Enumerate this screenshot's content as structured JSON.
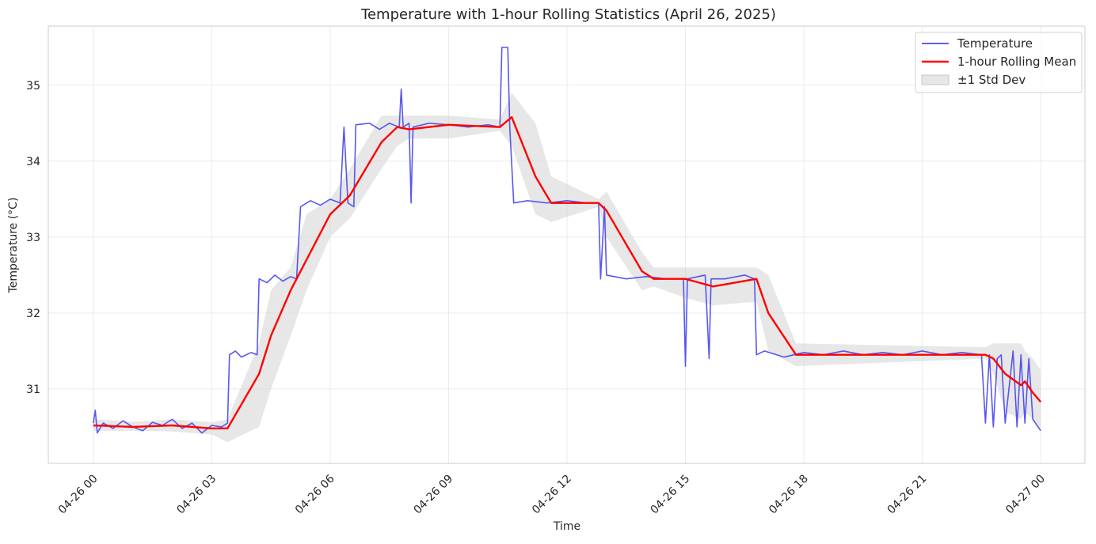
{
  "chart_data": {
    "type": "line",
    "title": "Temperature with 1-hour Rolling Statistics (April 26, 2025)",
    "xlabel": "Time",
    "ylabel": "Temperature (°C)",
    "xlim": [
      -1.14,
      25.12
    ],
    "ylim": [
      30.02,
      35.78
    ],
    "xticks": [
      {
        "value": 0,
        "label": "04-26 00"
      },
      {
        "value": 3,
        "label": "04-26 03"
      },
      {
        "value": 6,
        "label": "04-26 06"
      },
      {
        "value": 9,
        "label": "04-26 09"
      },
      {
        "value": 12,
        "label": "04-26 12"
      },
      {
        "value": 15,
        "label": "04-26 15"
      },
      {
        "value": 18,
        "label": "04-26 18"
      },
      {
        "value": 21,
        "label": "04-26 21"
      },
      {
        "value": 24,
        "label": "04-27 00"
      }
    ],
    "yticks": [
      31,
      32,
      33,
      34,
      35
    ],
    "grid": true,
    "legend": "upper right",
    "series": [
      {
        "name": "Temperature",
        "color": "#4646ee",
        "x": [
          0,
          0.05,
          0.1,
          0.25,
          0.5,
          0.75,
          1.0,
          1.25,
          1.5,
          1.75,
          2.0,
          2.25,
          2.5,
          2.75,
          3.0,
          3.25,
          3.4,
          3.45,
          3.6,
          3.75,
          4.0,
          4.15,
          4.2,
          4.4,
          4.6,
          4.8,
          5.0,
          5.15,
          5.25,
          5.5,
          5.75,
          6.0,
          6.25,
          6.35,
          6.45,
          6.6,
          6.65,
          7.0,
          7.25,
          7.5,
          7.75,
          7.8,
          7.85,
          8.0,
          8.05,
          8.1,
          8.5,
          9.0,
          9.5,
          10.0,
          10.3,
          10.35,
          10.5,
          10.55,
          10.65,
          11.0,
          11.5,
          12.0,
          12.5,
          12.8,
          12.85,
          12.95,
          13.0,
          13.5,
          14.0,
          14.5,
          14.95,
          15.0,
          15.05,
          15.5,
          15.6,
          15.65,
          16.0,
          16.5,
          16.75,
          16.8,
          17.0,
          17.5,
          18.0,
          18.5,
          19.0,
          19.5,
          20.0,
          20.5,
          21.0,
          21.5,
          22.0,
          22.5,
          22.6,
          22.7,
          22.8,
          22.9,
          23.0,
          23.1,
          23.3,
          23.4,
          23.5,
          23.6,
          23.7,
          23.8,
          24.0
        ],
        "values": [
          30.55,
          30.72,
          30.42,
          30.55,
          30.48,
          30.58,
          30.5,
          30.45,
          30.56,
          30.52,
          30.6,
          30.48,
          30.55,
          30.42,
          30.52,
          30.5,
          30.55,
          31.45,
          31.5,
          31.42,
          31.48,
          31.45,
          32.45,
          32.4,
          32.5,
          32.42,
          32.48,
          32.45,
          33.4,
          33.48,
          33.42,
          33.5,
          33.45,
          34.45,
          33.45,
          33.4,
          34.48,
          34.5,
          34.42,
          34.5,
          34.45,
          34.95,
          34.45,
          34.5,
          33.45,
          34.45,
          34.5,
          34.48,
          34.45,
          34.48,
          34.45,
          35.5,
          35.5,
          34.45,
          33.45,
          33.48,
          33.45,
          33.48,
          33.45,
          33.45,
          32.45,
          33.4,
          32.5,
          32.45,
          32.48,
          32.45,
          32.45,
          31.3,
          32.45,
          32.5,
          31.4,
          32.45,
          32.45,
          32.5,
          32.45,
          31.45,
          31.5,
          31.42,
          31.48,
          31.45,
          31.5,
          31.45,
          31.48,
          31.45,
          31.5,
          31.45,
          31.48,
          31.45,
          30.55,
          31.45,
          30.5,
          31.4,
          31.45,
          30.55,
          31.5,
          30.5,
          31.45,
          30.55,
          31.4,
          30.6,
          30.45
        ]
      },
      {
        "name": "1-hour Rolling Mean",
        "color": "#ff0000",
        "x": [
          0,
          1,
          2,
          3,
          3.4,
          4.2,
          4.5,
          5.0,
          5.4,
          6.0,
          6.5,
          7.3,
          7.7,
          8.0,
          9.0,
          10.3,
          10.6,
          11.2,
          11.6,
          12.8,
          13.0,
          13.9,
          14.2,
          15.0,
          15.7,
          16.8,
          17.1,
          17.8,
          22.6,
          22.8,
          23.1,
          23.5,
          23.6,
          23.8,
          24
        ],
        "values": [
          30.52,
          30.5,
          30.52,
          30.48,
          30.48,
          31.2,
          31.7,
          32.3,
          32.7,
          33.3,
          33.55,
          34.25,
          34.45,
          34.42,
          34.48,
          34.45,
          34.58,
          33.8,
          33.45,
          33.45,
          33.35,
          32.55,
          32.45,
          32.45,
          32.35,
          32.45,
          32.0,
          31.45,
          31.45,
          31.4,
          31.2,
          31.05,
          31.1,
          30.95,
          30.83
        ]
      },
      {
        "name": "±1 Std Dev",
        "color": "#d3d3d3",
        "x": [
          0,
          1,
          2,
          3,
          3.4,
          4.2,
          4.5,
          5.0,
          5.4,
          6.0,
          6.5,
          7.3,
          7.7,
          8.0,
          9.0,
          10.3,
          10.6,
          11.2,
          11.6,
          12.8,
          13.0,
          13.9,
          14.2,
          15.0,
          15.7,
          16.8,
          17.1,
          17.8,
          22.6,
          22.8,
          23.1,
          23.5,
          23.6,
          23.8,
          24
        ],
        "lower": [
          30.45,
          30.45,
          30.44,
          30.4,
          30.3,
          30.5,
          31.0,
          31.7,
          32.3,
          33.0,
          33.25,
          33.9,
          34.2,
          34.3,
          34.3,
          34.4,
          34.2,
          33.3,
          33.2,
          33.4,
          33.0,
          32.3,
          32.35,
          32.2,
          32.1,
          32.15,
          31.5,
          31.3,
          31.4,
          31.2,
          30.7,
          30.6,
          30.7,
          30.6,
          30.45
        ],
        "upper": [
          30.6,
          30.57,
          30.6,
          30.56,
          30.6,
          31.6,
          32.3,
          32.6,
          33.3,
          33.5,
          33.9,
          34.6,
          34.6,
          34.6,
          34.6,
          34.55,
          34.9,
          34.5,
          33.8,
          33.5,
          33.6,
          32.8,
          32.6,
          32.6,
          32.6,
          32.6,
          32.5,
          31.6,
          31.55,
          31.6,
          31.6,
          31.6,
          31.5,
          31.4,
          31.25
        ]
      }
    ]
  }
}
